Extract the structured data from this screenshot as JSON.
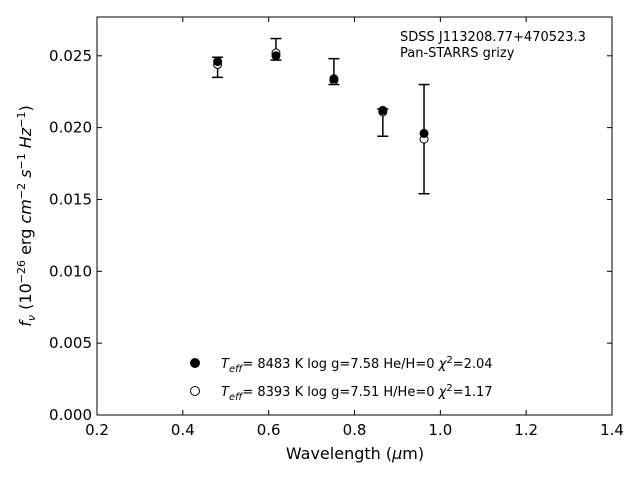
{
  "chart_data": {
    "type": "scatter",
    "xlabel_main": "Wavelength (",
    "xlabel_mu": "μ",
    "xlabel_end": "m)",
    "ylabel": {
      "f": "f",
      "nu": "ν",
      "open": " (10",
      "exp26": "−26",
      "erg": " erg ",
      "cm": "cm",
      "exp2": "−2",
      "s": " s",
      "exp1a": "−1",
      "hz": " Hz",
      "exp1b": "−1",
      "close": ")"
    },
    "xlim": [
      0.2,
      1.4
    ],
    "ylim": [
      0.0,
      0.0277
    ],
    "x_ticks": [
      0.2,
      0.4,
      0.6,
      0.8,
      1.0,
      1.2,
      1.4
    ],
    "x_tick_labels": [
      "0.2",
      "0.4",
      "0.6",
      "0.8",
      "1.0",
      "1.2",
      "1.4"
    ],
    "y_ticks": [
      0.0,
      0.005,
      0.01,
      0.015,
      0.02,
      0.025
    ],
    "y_tick_labels": [
      "0.000",
      "0.005",
      "0.010",
      "0.015",
      "0.020",
      "0.025"
    ],
    "annotation": [
      "SDSS J113208.77+470523.3",
      "Pan-STARRS grizy"
    ],
    "observed": {
      "x": [
        0.481,
        0.617,
        0.752,
        0.866,
        0.962
      ],
      "y": [
        0.0242,
        0.0254,
        0.0239,
        0.0213,
        0.0191
      ],
      "yerr_low": [
        0.0235,
        0.0247,
        0.023,
        0.0194,
        0.0154
      ],
      "yerr_high": [
        0.0249,
        0.0262,
        0.0248,
        0.0213,
        0.023
      ]
    },
    "series": [
      {
        "marker": "filled",
        "x": [
          0.481,
          0.617,
          0.752,
          0.866,
          0.962
        ],
        "y": [
          0.0246,
          0.025,
          0.0234,
          0.0212,
          0.0196
        ],
        "legend": {
          "teff": "T",
          "eff": "eff",
          "rest": "=  8483 K  log g=7.58  He/H=0  ",
          "chi": "χ",
          "sup": "2",
          "val": "=2.04"
        }
      },
      {
        "marker": "open",
        "x": [
          0.481,
          0.617,
          0.752,
          0.866,
          0.962
        ],
        "y": [
          0.0244,
          0.0252,
          0.0233,
          0.0211,
          0.0192
        ],
        "legend": {
          "teff": "T",
          "eff": "eff",
          "rest": "=  8393 K  log g=7.51  H/He=0  ",
          "chi": "χ",
          "sup": "2",
          "val": "=1.17"
        }
      }
    ],
    "colors": {
      "marker": "#000000",
      "axis": "#000000",
      "open_fill": "#ffffff"
    }
  }
}
